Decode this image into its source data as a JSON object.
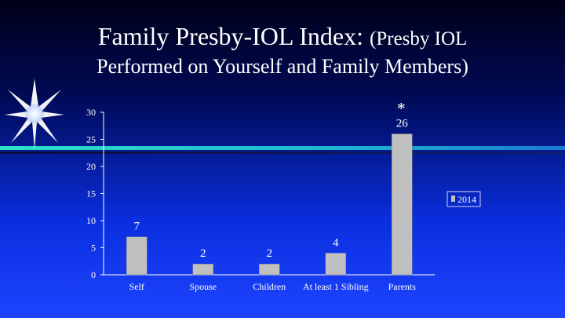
{
  "header": {
    "title_main": "Family Presby-IOL Index:",
    "title_paren": "(Presby IOL",
    "title_line2": "Performed on Yourself and Family Members)"
  },
  "chart_data": {
    "type": "bar",
    "title": "Family Presby-IOL Index: (Presby IOL Performed on Yourself and Family Members)",
    "categories": [
      "Self",
      "Spouse",
      "Children",
      "At least 1 Sibling",
      "Parents"
    ],
    "series": [
      {
        "name": "2014",
        "values": [
          7,
          2,
          2,
          4,
          26
        ]
      }
    ],
    "yticks": [
      0,
      5,
      10,
      15,
      20,
      25,
      30
    ],
    "ylim": [
      0,
      30
    ],
    "xlabel": "",
    "ylabel": "",
    "legend": "right",
    "annotations": [
      {
        "category": "Parents",
        "text": "*"
      }
    ],
    "colors": {
      "bar": "#c0c0c0",
      "bar_edge": "#808080",
      "text": "#ffffff",
      "axis": "#ffffff"
    }
  }
}
